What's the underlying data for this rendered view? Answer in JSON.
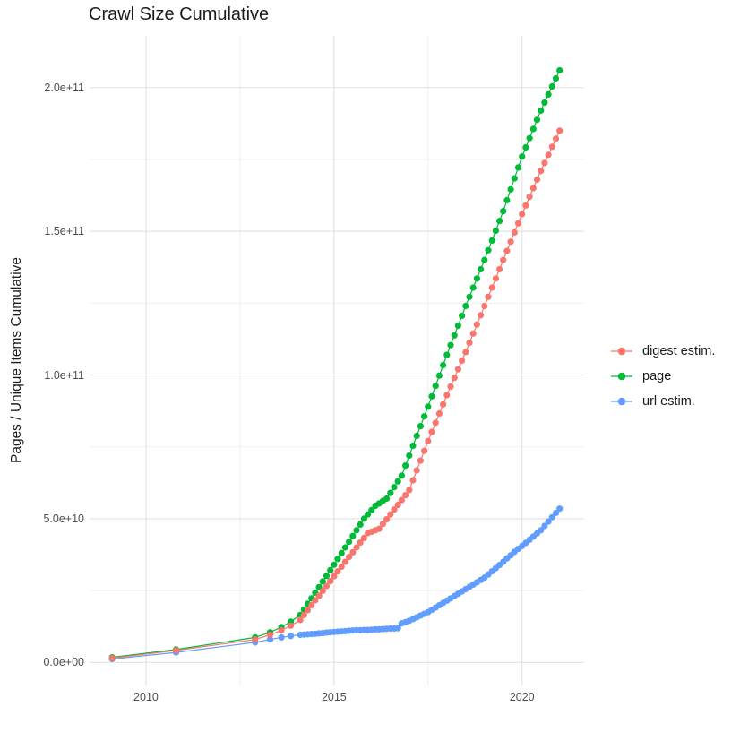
{
  "title": "Crawl Size Cumulative",
  "y_axis_title": "Pages / Unique Items Cumulative",
  "legend": {
    "items": [
      {
        "label": "digest estim.",
        "color": "#F8766D"
      },
      {
        "label": "page",
        "color": "#00BA38"
      },
      {
        "label": "url estim.",
        "color": "#619CFF"
      }
    ]
  },
  "chart_data": {
    "type": "scatter",
    "title": "Crawl Size Cumulative",
    "xlabel": "",
    "ylabel": "Pages / Unique Items Cumulative",
    "grid": true,
    "legend_position": "right",
    "x_axis": {
      "range": [
        2008.5,
        2021.65
      ],
      "ticks": [
        {
          "value": 2010,
          "label": "2010"
        },
        {
          "value": 2015,
          "label": "2015"
        },
        {
          "value": 2020,
          "label": "2020"
        }
      ],
      "minor": [
        2012.5,
        2017.5
      ]
    },
    "y_axis": {
      "unit": "pages (value_unit = 1e9)",
      "range_e9": [
        -8,
        218
      ],
      "ticks": [
        {
          "value_e9": 0,
          "label": "0.0e+00"
        },
        {
          "value_e9": 50,
          "label": "5.0e+10"
        },
        {
          "value_e9": 100,
          "label": "1.0e+11"
        },
        {
          "value_e9": 150,
          "label": "1.5e+11"
        },
        {
          "value_e9": 200,
          "label": "2.0e+11"
        }
      ],
      "minor_e9": [
        25,
        75,
        125,
        175
      ]
    },
    "x": [
      2009.1,
      2010.8,
      2012.9,
      2013.3,
      2013.6,
      2013.85,
      2014.1,
      2014.2,
      2014.3,
      2014.4,
      2014.5,
      2014.6,
      2014.7,
      2014.8,
      2014.9,
      2015.0,
      2015.1,
      2015.2,
      2015.3,
      2015.4,
      2015.5,
      2015.6,
      2015.7,
      2015.8,
      2015.9,
      2016.0,
      2016.1,
      2016.2,
      2016.3,
      2016.4,
      2016.5,
      2016.6,
      2016.7,
      2016.8,
      2016.9,
      2017.0,
      2017.1,
      2017.2,
      2017.3,
      2017.4,
      2017.5,
      2017.6,
      2017.7,
      2017.8,
      2017.9,
      2018.0,
      2018.1,
      2018.2,
      2018.3,
      2018.4,
      2018.5,
      2018.6,
      2018.7,
      2018.8,
      2018.9,
      2019.0,
      2019.1,
      2019.2,
      2019.3,
      2019.4,
      2019.5,
      2019.6,
      2019.7,
      2019.8,
      2019.9,
      2020.0,
      2020.1,
      2020.2,
      2020.3,
      2020.4,
      2020.5,
      2020.6,
      2020.7,
      2020.8,
      2020.9,
      2021.0
    ],
    "series": [
      {
        "name": "digest estim.",
        "color": "#F8766D",
        "y_e9": [
          1.5,
          4.2,
          8.0,
          9.6,
          11.2,
          12.8,
          14.8,
          16.5,
          18.2,
          19.9,
          21.6,
          23.2,
          24.9,
          26.6,
          28.3,
          30.0,
          31.7,
          33.3,
          35.0,
          36.7,
          38.3,
          40.0,
          41.7,
          43.3,
          45.0,
          45.5,
          46.0,
          46.5,
          48.2,
          49.8,
          51.5,
          53.2,
          54.8,
          56.5,
          58.2,
          60.0,
          63.4,
          66.8,
          70.2,
          73.6,
          77.0,
          80.2,
          83.4,
          86.6,
          89.8,
          93.0,
          96.0,
          99.0,
          102.0,
          105.0,
          108.0,
          111.2,
          114.4,
          117.6,
          120.8,
          124.0,
          127.2,
          130.4,
          133.6,
          136.8,
          140.0,
          143.2,
          146.4,
          149.6,
          152.8,
          156.0,
          159.0,
          162.0,
          165.0,
          168.0,
          171.0,
          173.8,
          176.6,
          179.4,
          182.2,
          185.0
        ]
      },
      {
        "name": "page",
        "color": "#00BA38",
        "y_e9": [
          1.8,
          4.5,
          8.7,
          10.5,
          12.3,
          14.2,
          16.5,
          18.4,
          20.4,
          22.3,
          24.3,
          26.2,
          28.2,
          30.1,
          32.1,
          34.0,
          36.0,
          38.0,
          40.0,
          42.0,
          44.0,
          46.0,
          48.0,
          50.0,
          51.5,
          53.0,
          54.5,
          55.3,
          56.2,
          57.0,
          59.0,
          61.0,
          63.0,
          65.0,
          68.5,
          72.0,
          75.4,
          78.8,
          82.2,
          85.6,
          89.0,
          92.6,
          96.2,
          99.8,
          103.4,
          107.0,
          110.4,
          113.8,
          117.2,
          120.6,
          124.0,
          127.2,
          130.4,
          133.6,
          136.8,
          140.0,
          143.4,
          146.8,
          150.2,
          153.6,
          157.0,
          160.8,
          164.6,
          168.4,
          172.2,
          176.0,
          179.2,
          182.4,
          185.6,
          188.8,
          192.0,
          194.8,
          197.6,
          200.4,
          203.2,
          206.0
        ]
      },
      {
        "name": "url estim.",
        "color": "#619CFF",
        "y_e9": [
          1.2,
          3.5,
          7.0,
          8.0,
          8.7,
          9.2,
          9.6,
          9.7,
          9.8,
          9.9,
          10.0,
          10.1,
          10.2,
          10.4,
          10.5,
          10.6,
          10.7,
          10.8,
          10.9,
          11.0,
          11.1,
          11.2,
          11.2,
          11.3,
          11.3,
          11.4,
          11.5,
          11.5,
          11.6,
          11.7,
          11.8,
          11.8,
          11.9,
          13.6,
          14.0,
          14.5,
          15.1,
          15.7,
          16.3,
          16.9,
          17.5,
          18.3,
          19.1,
          19.9,
          20.7,
          21.5,
          22.3,
          23.1,
          23.9,
          24.7,
          25.5,
          26.3,
          27.1,
          27.9,
          28.7,
          29.5,
          30.6,
          31.7,
          32.8,
          33.9,
          35.0,
          36.2,
          37.3,
          38.5,
          39.5,
          40.5,
          41.6,
          42.7,
          43.8,
          44.9,
          46.0,
          47.5,
          49.0,
          50.5,
          52.0,
          53.5
        ]
      }
    ]
  }
}
